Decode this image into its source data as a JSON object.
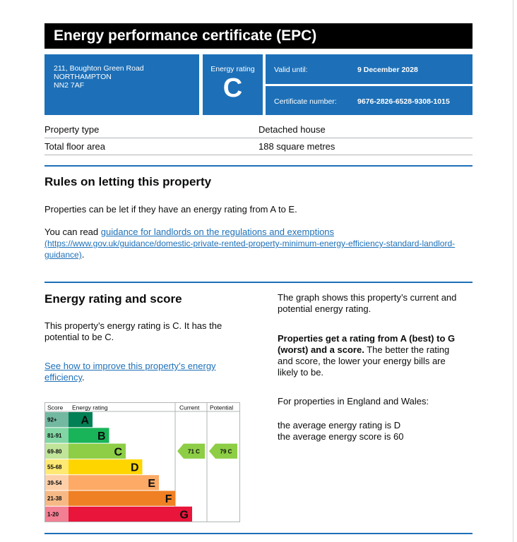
{
  "header": {
    "title": "Energy performance certificate (EPC)"
  },
  "address": {
    "line1": "211, Boughton Green Road",
    "line2": "NORTHAMPTON",
    "line3": "NN2 7AF"
  },
  "energy_rating_box": {
    "label": "Energy rating",
    "value": "C"
  },
  "valid_until": {
    "label": "Valid until:",
    "value": "9 December 2028"
  },
  "certificate_number": {
    "label": "Certificate number:",
    "value": "9676-2826-6528-9308-1015"
  },
  "property": [
    {
      "label": "Property type",
      "value": "Detached house"
    },
    {
      "label": "Total floor area",
      "value": "188 square metres"
    }
  ],
  "letting": {
    "title": "Rules on letting this property",
    "para1": "Properties can be let if they have an energy rating from A to E.",
    "para2_prefix": "You can read ",
    "link_text": "guidance for landlords on the regulations and exemptions",
    "link_url_line1": "(https://www.gov.uk/guidance/domestic-private-rented-property-minimum-energy-efficiency-standard-landlord-",
    "link_url_line2": "guidance)",
    "para2_suffix": "."
  },
  "rating_section": {
    "title": "Energy rating and score",
    "para1_line1": "This property’s energy rating is C. It has the",
    "para1_line2": "potential to be C.",
    "improve_link_line1": "See how to improve this property’s energy",
    "improve_link_line2": "efficiency",
    "improve_suffix": ".",
    "right_para1_line1": "The graph shows this property’s current and",
    "right_para1_line2": "potential energy rating.",
    "right_bold_line1": "Properties get a rating from A (best) to G",
    "right_bold_line2": "(worst) and a score.",
    "right_rest_line2": " The better the rating",
    "right_rest_line3": "and score, the lower your energy bills are",
    "right_rest_line4": "likely to be.",
    "england_wales": "For properties in England and Wales:",
    "avg_rating": "the average energy rating is D",
    "avg_score": "the average energy score is 60"
  },
  "chart_data": {
    "type": "table",
    "headers": {
      "score": "Score",
      "rating": "Energy rating",
      "current": "Current",
      "potential": "Potential"
    },
    "bands": [
      {
        "range": "92+",
        "letter": "A",
        "color": "#008054"
      },
      {
        "range": "81-91",
        "letter": "B",
        "color": "#19b459"
      },
      {
        "range": "69-80",
        "letter": "C",
        "color": "#8dce46"
      },
      {
        "range": "55-68",
        "letter": "D",
        "color": "#ffd500"
      },
      {
        "range": "39-54",
        "letter": "E",
        "color": "#fcaa65"
      },
      {
        "range": "21-38",
        "letter": "F",
        "color": "#ef8023"
      },
      {
        "range": "1-20",
        "letter": "G",
        "color": "#e9153b"
      }
    ],
    "current": {
      "score": 71,
      "letter": "C",
      "label": "71  C"
    },
    "potential": {
      "score": 79,
      "letter": "C",
      "label": "79  C"
    }
  },
  "colors": {
    "brand_blue": "#1d70b8",
    "header_black": "#000000"
  }
}
